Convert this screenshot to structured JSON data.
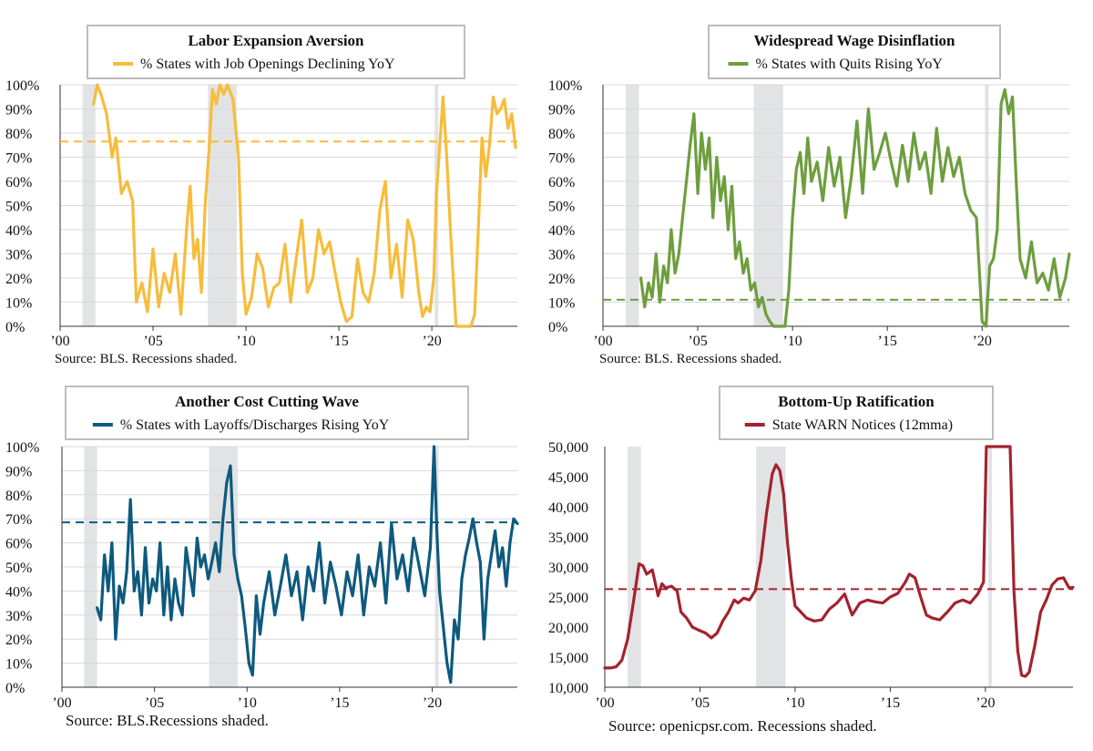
{
  "chart_data": [
    {
      "type": "line",
      "title": "Labor Expansion Aversion",
      "source": "Source: BLS. Recessions shaded.",
      "ylim": [
        0,
        100
      ],
      "y_ticks": [
        "0%",
        "10%",
        "20%",
        "30%",
        "40%",
        "50%",
        "60%",
        "70%",
        "80%",
        "90%",
        "100%"
      ],
      "xlim": [
        2000,
        2024.6
      ],
      "x_ticks": [
        {
          "v": 2000,
          "label": "'00"
        },
        {
          "v": 2005,
          "label": "'05"
        },
        {
          "v": 2010,
          "label": "'10"
        },
        {
          "v": 2015,
          "label": "'15"
        },
        {
          "v": 2020,
          "label": "'20"
        }
      ],
      "recessions": [
        [
          2001.2,
          2001.9
        ],
        [
          2007.95,
          2009.5
        ],
        [
          2020.15,
          2020.35
        ]
      ],
      "reference_line": 76.5,
      "grid": true,
      "series": [
        {
          "name": "% States with Job Openings Declining YoY",
          "color": "#F7BC3B",
          "x": [
            2001.8,
            2002.0,
            2002.2,
            2002.5,
            2002.8,
            2003.0,
            2003.3,
            2003.6,
            2003.9,
            2004.1,
            2004.4,
            2004.7,
            2005.0,
            2005.3,
            2005.6,
            2005.9,
            2006.2,
            2006.5,
            2006.8,
            2007.0,
            2007.2,
            2007.4,
            2007.6,
            2007.8,
            2008.0,
            2008.2,
            2008.4,
            2008.6,
            2008.8,
            2009.0,
            2009.3,
            2009.6,
            2009.8,
            2010.0,
            2010.3,
            2010.6,
            2010.9,
            2011.2,
            2011.5,
            2011.8,
            2012.1,
            2012.4,
            2012.7,
            2013.0,
            2013.3,
            2013.6,
            2013.9,
            2014.2,
            2014.5,
            2014.8,
            2015.1,
            2015.4,
            2015.7,
            2016.0,
            2016.3,
            2016.6,
            2016.9,
            2017.2,
            2017.5,
            2017.8,
            2018.1,
            2018.4,
            2018.7,
            2019.0,
            2019.3,
            2019.5,
            2019.7,
            2019.9,
            2020.1,
            2020.25,
            2020.4,
            2020.6,
            2020.8,
            2021.0,
            2021.3,
            2021.6,
            2021.9,
            2022.1,
            2022.3,
            2022.5,
            2022.7,
            2022.9,
            2023.1,
            2023.3,
            2023.5,
            2023.7,
            2023.9,
            2024.1,
            2024.3,
            2024.5
          ],
          "values": [
            92,
            100,
            96,
            88,
            70,
            78,
            55,
            60,
            52,
            10,
            18,
            6,
            32,
            8,
            22,
            14,
            30,
            5,
            40,
            58,
            28,
            36,
            14,
            50,
            72,
            98,
            92,
            100,
            96,
            100,
            94,
            70,
            22,
            5,
            12,
            30,
            24,
            8,
            16,
            18,
            34,
            10,
            28,
            44,
            14,
            20,
            40,
            30,
            35,
            22,
            10,
            2,
            4,
            28,
            14,
            10,
            22,
            48,
            60,
            20,
            34,
            12,
            44,
            36,
            14,
            4,
            8,
            6,
            20,
            55,
            72,
            95,
            70,
            40,
            0,
            0,
            0,
            0,
            5,
            40,
            78,
            62,
            75,
            95,
            88,
            90,
            94,
            82,
            88,
            74
          ]
        }
      ]
    },
    {
      "type": "line",
      "title": "Widespread Wage Disinflation",
      "source": "Source: BLS. Recessions shaded.",
      "ylim": [
        0,
        100
      ],
      "y_ticks": [
        "0%",
        "10%",
        "20%",
        "30%",
        "40%",
        "50%",
        "60%",
        "70%",
        "80%",
        "90%",
        "100%"
      ],
      "xlim": [
        2000,
        2024.6
      ],
      "x_ticks": [
        {
          "v": 2000,
          "label": "'00"
        },
        {
          "v": 2005,
          "label": "'05"
        },
        {
          "v": 2010,
          "label": "'10"
        },
        {
          "v": 2015,
          "label": "'15"
        },
        {
          "v": 2020,
          "label": "'20"
        }
      ],
      "recessions": [
        [
          2001.2,
          2001.9
        ],
        [
          2007.95,
          2009.5
        ],
        [
          2020.15,
          2020.35
        ]
      ],
      "reference_line": 11,
      "grid": true,
      "series": [
        {
          "name": "% States with Quits Rising YoY",
          "color": "#6E9E3E",
          "x": [
            2002.0,
            2002.2,
            2002.4,
            2002.6,
            2002.8,
            2003.0,
            2003.2,
            2003.4,
            2003.6,
            2003.8,
            2004.0,
            2004.2,
            2004.4,
            2004.6,
            2004.8,
            2005.0,
            2005.2,
            2005.4,
            2005.6,
            2005.8,
            2006.0,
            2006.2,
            2006.4,
            2006.6,
            2006.8,
            2007.0,
            2007.2,
            2007.4,
            2007.6,
            2007.8,
            2008.0,
            2008.2,
            2008.4,
            2008.6,
            2008.8,
            2009.0,
            2009.3,
            2009.6,
            2009.8,
            2010.0,
            2010.2,
            2010.4,
            2010.6,
            2010.8,
            2011.0,
            2011.3,
            2011.6,
            2011.9,
            2012.2,
            2012.5,
            2012.8,
            2013.1,
            2013.4,
            2013.7,
            2014.0,
            2014.3,
            2014.6,
            2014.9,
            2015.2,
            2015.5,
            2015.8,
            2016.1,
            2016.4,
            2016.7,
            2017.0,
            2017.3,
            2017.6,
            2017.9,
            2018.2,
            2018.5,
            2018.8,
            2019.1,
            2019.4,
            2019.7,
            2020.0,
            2020.2,
            2020.4,
            2020.6,
            2020.8,
            2021.0,
            2021.2,
            2021.4,
            2021.6,
            2021.8,
            2022.0,
            2022.3,
            2022.6,
            2022.9,
            2023.2,
            2023.5,
            2023.8,
            2024.1,
            2024.4,
            2024.6
          ],
          "values": [
            20,
            8,
            18,
            12,
            30,
            10,
            25,
            18,
            40,
            22,
            30,
            45,
            60,
            75,
            88,
            55,
            80,
            65,
            78,
            45,
            70,
            52,
            62,
            40,
            58,
            28,
            35,
            22,
            28,
            15,
            18,
            8,
            12,
            5,
            2,
            0,
            0,
            0,
            15,
            45,
            65,
            72,
            55,
            78,
            60,
            68,
            52,
            74,
            58,
            70,
            45,
            62,
            85,
            55,
            90,
            65,
            72,
            80,
            68,
            58,
            75,
            60,
            80,
            65,
            72,
            55,
            82,
            60,
            74,
            62,
            70,
            55,
            48,
            45,
            2,
            0,
            25,
            28,
            40,
            92,
            98,
            88,
            95,
            60,
            28,
            20,
            35,
            18,
            22,
            15,
            28,
            12,
            20,
            30
          ]
        }
      ]
    },
    {
      "type": "line",
      "title": "Another Cost Cutting Wave",
      "source": "Source: BLS.Recessions shaded.",
      "ylim": [
        0,
        100
      ],
      "y_ticks": [
        "0%",
        "10%",
        "20%",
        "30%",
        "40%",
        "50%",
        "60%",
        "70%",
        "80%",
        "90%",
        "100%"
      ],
      "xlim": [
        2000,
        2024.6
      ],
      "x_ticks": [
        {
          "v": 2000,
          "label": "'00"
        },
        {
          "v": 2005,
          "label": "'05"
        },
        {
          "v": 2010,
          "label": "'10"
        },
        {
          "v": 2015,
          "label": "'15"
        },
        {
          "v": 2020,
          "label": "'20"
        }
      ],
      "recessions": [
        [
          2001.2,
          2001.9
        ],
        [
          2007.95,
          2009.5
        ],
        [
          2020.15,
          2020.35
        ]
      ],
      "reference_line": 68.5,
      "grid": true,
      "series": [
        {
          "name": "% States with Layoffs/Discharges Rising YoY",
          "color": "#0E5A7E",
          "x": [
            2001.9,
            2002.1,
            2002.3,
            2002.5,
            2002.7,
            2002.9,
            2003.1,
            2003.3,
            2003.5,
            2003.7,
            2003.9,
            2004.1,
            2004.3,
            2004.5,
            2004.7,
            2004.9,
            2005.1,
            2005.3,
            2005.5,
            2005.7,
            2005.9,
            2006.1,
            2006.3,
            2006.5,
            2006.7,
            2006.9,
            2007.1,
            2007.3,
            2007.5,
            2007.7,
            2007.9,
            2008.1,
            2008.3,
            2008.5,
            2008.7,
            2008.9,
            2009.1,
            2009.3,
            2009.5,
            2009.7,
            2009.9,
            2010.1,
            2010.3,
            2010.5,
            2010.7,
            2010.9,
            2011.2,
            2011.5,
            2011.8,
            2012.1,
            2012.4,
            2012.7,
            2013.0,
            2013.3,
            2013.6,
            2013.9,
            2014.2,
            2014.5,
            2014.8,
            2015.1,
            2015.4,
            2015.7,
            2016.0,
            2016.3,
            2016.6,
            2016.9,
            2017.2,
            2017.5,
            2017.8,
            2018.1,
            2018.4,
            2018.7,
            2019.0,
            2019.3,
            2019.6,
            2019.9,
            2020.1,
            2020.25,
            2020.4,
            2020.6,
            2020.8,
            2021.0,
            2021.2,
            2021.4,
            2021.6,
            2021.8,
            2022.0,
            2022.2,
            2022.4,
            2022.6,
            2022.8,
            2023.0,
            2023.2,
            2023.4,
            2023.6,
            2023.8,
            2024.0,
            2024.2,
            2024.4,
            2024.6
          ],
          "values": [
            33,
            28,
            55,
            40,
            60,
            20,
            42,
            35,
            48,
            78,
            40,
            48,
            30,
            58,
            35,
            45,
            40,
            60,
            30,
            50,
            28,
            45,
            35,
            30,
            58,
            48,
            38,
            62,
            50,
            55,
            45,
            52,
            60,
            48,
            70,
            85,
            92,
            55,
            45,
            38,
            25,
            10,
            5,
            38,
            22,
            35,
            48,
            30,
            42,
            55,
            38,
            48,
            28,
            50,
            40,
            60,
            35,
            52,
            42,
            30,
            48,
            38,
            55,
            30,
            50,
            42,
            60,
            35,
            68,
            45,
            55,
            40,
            62,
            50,
            38,
            58,
            100,
            65,
            40,
            25,
            10,
            2,
            28,
            20,
            45,
            55,
            62,
            70,
            60,
            52,
            20,
            45,
            55,
            65,
            50,
            58,
            42,
            60,
            70,
            68
          ]
        }
      ]
    },
    {
      "type": "line",
      "title": "Bottom-Up Ratification",
      "source": "Source: openicpsr.com. Recessions shaded.",
      "ylim": [
        10000,
        50000
      ],
      "y_ticks": [
        "10,000",
        "15,000",
        "20,000",
        "25,000",
        "30,000",
        "35,000",
        "40,000",
        "45,000",
        "50,000"
      ],
      "xlim": [
        2000,
        2024.6
      ],
      "x_ticks": [
        {
          "v": 2000,
          "label": "'00"
        },
        {
          "v": 2005,
          "label": "'05"
        },
        {
          "v": 2010,
          "label": "'10"
        },
        {
          "v": 2015,
          "label": "'15"
        },
        {
          "v": 2020,
          "label": "'20"
        }
      ],
      "recessions": [
        [
          2001.2,
          2001.9
        ],
        [
          2007.95,
          2009.5
        ],
        [
          2020.15,
          2020.35
        ]
      ],
      "reference_line": 26300,
      "grid": false,
      "series": [
        {
          "name": "State WARN Notices (12mma)",
          "color": "#A3232E",
          "x": [
            2000.0,
            2000.3,
            2000.6,
            2000.9,
            2001.2,
            2001.5,
            2001.8,
            2002.0,
            2002.2,
            2002.5,
            2002.8,
            2003.0,
            2003.2,
            2003.5,
            2003.8,
            2004.0,
            2004.3,
            2004.6,
            2005.0,
            2005.3,
            2005.6,
            2005.9,
            2006.2,
            2006.5,
            2006.8,
            2007.0,
            2007.3,
            2007.6,
            2007.9,
            2008.2,
            2008.5,
            2008.8,
            2009.0,
            2009.2,
            2009.4,
            2009.6,
            2009.8,
            2010.0,
            2010.3,
            2010.6,
            2011.0,
            2011.4,
            2011.8,
            2012.2,
            2012.6,
            2013.0,
            2013.4,
            2013.8,
            2014.2,
            2014.6,
            2015.0,
            2015.4,
            2015.8,
            2016.0,
            2016.3,
            2016.6,
            2016.9,
            2017.2,
            2017.6,
            2018.0,
            2018.4,
            2018.8,
            2019.2,
            2019.6,
            2019.9,
            2020.05,
            2020.15,
            2020.25,
            2021.3,
            2021.5,
            2021.7,
            2021.9,
            2022.1,
            2022.3,
            2022.6,
            2022.9,
            2023.2,
            2023.5,
            2023.8,
            2024.1,
            2024.4,
            2024.6
          ],
          "values": [
            13200,
            13200,
            13400,
            14500,
            18000,
            24000,
            30500,
            30200,
            28800,
            29500,
            25200,
            27200,
            26500,
            26800,
            26000,
            22500,
            21500,
            20000,
            19400,
            19000,
            18200,
            19000,
            21000,
            22500,
            24500,
            24000,
            24800,
            24500,
            26000,
            31000,
            39000,
            45500,
            47000,
            46000,
            42000,
            34000,
            28000,
            23500,
            22500,
            21500,
            21000,
            21200,
            23000,
            24000,
            25500,
            22000,
            24000,
            24500,
            24200,
            24000,
            25000,
            25600,
            27500,
            28800,
            28200,
            25000,
            22000,
            21500,
            21200,
            22500,
            24000,
            24500,
            24000,
            25500,
            27500,
            50000,
            50000,
            50000,
            50000,
            26000,
            16000,
            12000,
            11800,
            12500,
            17000,
            22500,
            24500,
            27000,
            28000,
            28200,
            26500,
            26600
          ]
        }
      ]
    }
  ]
}
